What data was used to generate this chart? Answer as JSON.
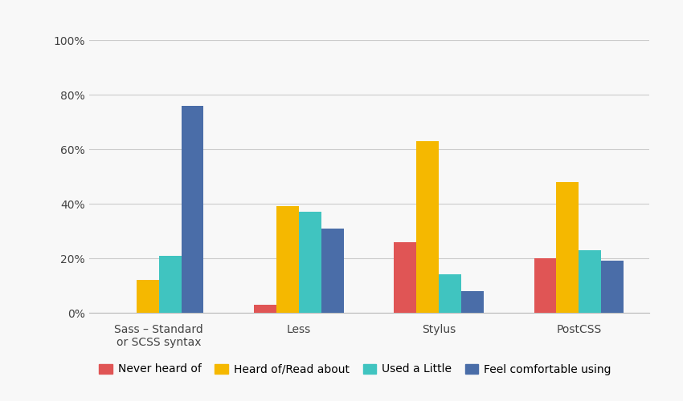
{
  "categories": [
    "Sass – Standard\nor SCSS syntax",
    "Less",
    "Stylus",
    "PostCSS"
  ],
  "series": [
    {
      "name": "Never heard of",
      "color": "#e05555",
      "values": [
        0,
        3,
        26,
        20
      ]
    },
    {
      "name": "Heard of/Read about",
      "color": "#f5b800",
      "values": [
        12,
        39,
        63,
        48
      ]
    },
    {
      "name": "Used a Little",
      "color": "#40c4c0",
      "values": [
        21,
        37,
        14,
        23
      ]
    },
    {
      "name": "Feel comfortable using",
      "color": "#4a6da8",
      "values": [
        76,
        31,
        8,
        19
      ]
    }
  ],
  "ylim": [
    0,
    100
  ],
  "yticks": [
    0,
    20,
    40,
    60,
    80,
    100
  ],
  "ytick_labels": [
    "0%",
    "20%",
    "40%",
    "60%",
    "80%",
    "100%"
  ],
  "background_color": "#f8f8f8",
  "grid_color": "#cccccc",
  "bar_width": 0.16,
  "tick_fontsize": 10,
  "legend_fontsize": 10
}
